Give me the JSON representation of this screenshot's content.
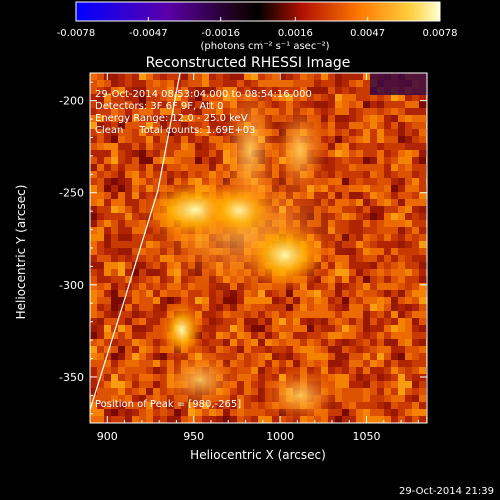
{
  "colorbar": {
    "ticks": [
      "-0.0078",
      "-0.0047",
      "-0.0016",
      "0.0016",
      "0.0047",
      "0.0078"
    ],
    "units": "(photons cm⁻² s⁻¹ asec⁻²)"
  },
  "chart_data": {
    "type": "heatmap",
    "title": "Reconstructed RHESSI Image",
    "xlabel": "Heliocentric X (arcsec)",
    "ylabel": "Heliocentric Y (arcsec)",
    "xlim": [
      890,
      1085
    ],
    "ylim": [
      -375,
      -185
    ],
    "xticks": [
      "900",
      "950",
      "1000",
      "1050"
    ],
    "yticks": [
      "-200",
      "-250",
      "-300",
      "-350"
    ],
    "peak": [
      980,
      -265
    ],
    "annotations": [
      "29-Oct-2014 08:53:04.000 to 08:54:16.000",
      "Detectors: 3F 6F 9F, Att 0",
      "Energy Range: 12.0 - 25.0 keV",
      "Clean     Total counts: 1.69E+03"
    ],
    "peak_text": "Position of Peak = [980,-265]",
    "colormap_range": [
      -0.0078,
      0.0078
    ]
  },
  "footer": {
    "timestamp": "29-Oct-2014 21:39"
  }
}
